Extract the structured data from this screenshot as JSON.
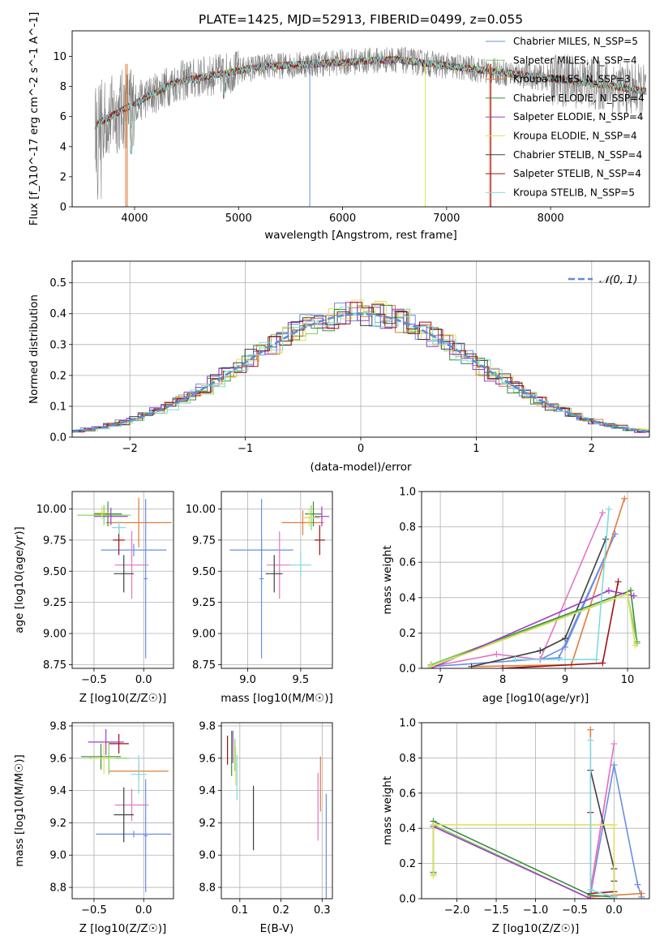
{
  "chart_data": [
    {
      "id": "spectrum",
      "type": "line",
      "title": "PLATE=1425, MJD=52913, FIBERID=0499, z=0.055",
      "xlabel": "wavelength [Angstrom, rest frame]",
      "ylabel": "Flux [f_λ10^-17 erg cm^-2 s^-1 A^-1]",
      "xlim": [
        3400,
        8950
      ],
      "ylim": [
        0,
        11.7
      ],
      "xticks": [
        4000,
        5000,
        6000,
        7000,
        8000
      ],
      "yticks": [
        0,
        2,
        4,
        6,
        8,
        10
      ],
      "grid": false,
      "legend_position": "top-right",
      "observed_series_color": "#808080",
      "legend": [
        {
          "name": "Chabrier MILES, N_SSP=5",
          "color": "#6a8ee6"
        },
        {
          "name": "Salpeter MILES, N_SSP=4",
          "color": "#7fcf5a"
        },
        {
          "name": "Kroupa MILES, N_SSP=3",
          "color": "#e07b39"
        },
        {
          "name": "Chabrier ELODIE, N_SSP=4",
          "color": "#3d8b3d"
        },
        {
          "name": "Salpeter ELODIE, N_SSP=4",
          "color": "#a03cc8"
        },
        {
          "name": "Kroupa ELODIE, N_SSP=4",
          "color": "#e0e060"
        },
        {
          "name": "Chabrier STELIB, N_SSP=4",
          "color": "#404040"
        },
        {
          "name": "Salpeter STELIB, N_SSP=4",
          "color": "#a01010"
        },
        {
          "name": "Kroupa STELIB, N_SSP=5",
          "color": "#7fdbe0"
        }
      ]
    },
    {
      "id": "residuals",
      "type": "line",
      "title": "",
      "xlabel": "(data-model)/error",
      "ylabel": "Normed distribution",
      "xlim": [
        -2.5,
        2.5
      ],
      "ylim": [
        0,
        0.57
      ],
      "xticks": [
        -2,
        -1,
        0,
        1,
        2
      ],
      "yticks": [
        0.0,
        0.1,
        0.2,
        0.3,
        0.4,
        0.5
      ],
      "grid": true,
      "legend_position": "top-right",
      "reference_curve": {
        "name": "𝒩(0, 1)",
        "color": "#5b8ed6",
        "style": "dashed",
        "mean": 0,
        "sigma": 1
      },
      "histogram_bin_width": 0.1,
      "histogram_bin_start": -2.5,
      "histogram_series_count": 9
    },
    {
      "id": "age_vs_Z",
      "type": "scatter",
      "title": "",
      "xlabel": "Z [log10(Z/Z☉)]",
      "ylabel": "age  [log10(age/yr)]",
      "xlim": [
        -0.72,
        0.3
      ],
      "ylim": [
        8.72,
        10.14
      ],
      "xticks": [
        -0.5,
        0.0
      ],
      "yticks": [
        8.75,
        9.0,
        9.25,
        9.5,
        9.75,
        10.0
      ],
      "grid": true,
      "points": [
        {
          "x": -0.1,
          "y": 9.67,
          "xerr": 0.33,
          "yerr": 0.05,
          "color": "#6a8ee6"
        },
        {
          "x": 0.02,
          "y": 9.44,
          "xerr": 0.02,
          "yerr": 0.64,
          "color": "#6a8ee6"
        },
        {
          "x": -0.05,
          "y": 9.89,
          "xerr": 0.33,
          "yerr": 0.2,
          "color": "#e07b39"
        },
        {
          "x": -0.12,
          "y": 9.55,
          "xerr": 0.17,
          "yerr": 0.27,
          "color": "#e377c2"
        },
        {
          "x": -0.2,
          "y": 9.48,
          "xerr": 0.1,
          "yerr": 0.15,
          "color": "#404040"
        },
        {
          "x": -0.25,
          "y": 9.75,
          "xerr": 0.06,
          "yerr": 0.12,
          "color": "#a01010"
        },
        {
          "x": -0.36,
          "y": 9.96,
          "xerr": 0.14,
          "yerr": 0.1,
          "color": "#3d8b3d"
        },
        {
          "x": -0.4,
          "y": 9.95,
          "xerr": 0.27,
          "yerr": 0.08,
          "color": "#7fcf5a"
        },
        {
          "x": -0.33,
          "y": 9.94,
          "xerr": 0.17,
          "yerr": 0.07,
          "color": "#a03cc8"
        },
        {
          "x": -0.42,
          "y": 9.97,
          "xerr": 0.08,
          "yerr": 0.05,
          "color": "#e0e060"
        },
        {
          "x": -0.25,
          "y": 9.85,
          "xerr": 0.07,
          "yerr": 0.05,
          "color": "#7fdbe0"
        }
      ]
    },
    {
      "id": "age_vs_mass",
      "type": "scatter",
      "title": "",
      "xlabel": "mass [log10(M/M☉)]",
      "ylabel": "",
      "xlim": [
        8.75,
        9.8
      ],
      "ylim": [
        8.72,
        10.14
      ],
      "xticks": [
        9.0,
        9.5
      ],
      "yticks": [
        8.75,
        9.0,
        9.25,
        9.5,
        9.75,
        10.0
      ],
      "grid": true,
      "points": [
        {
          "x": 9.13,
          "y": 9.67,
          "xerr": 0.3,
          "yerr": 0.08,
          "color": "#6a8ee6"
        },
        {
          "x": 9.13,
          "y": 9.44,
          "xerr": 0.02,
          "yerr": 0.64,
          "color": "#6a8ee6"
        },
        {
          "x": 9.52,
          "y": 9.89,
          "xerr": 0.2,
          "yerr": 0.1,
          "color": "#e07b39"
        },
        {
          "x": 9.3,
          "y": 9.55,
          "xerr": 0.12,
          "yerr": 0.27,
          "color": "#e377c2"
        },
        {
          "x": 9.25,
          "y": 9.48,
          "xerr": 0.08,
          "yerr": 0.15,
          "color": "#404040"
        },
        {
          "x": 9.68,
          "y": 9.75,
          "xerr": 0.05,
          "yerr": 0.12,
          "color": "#a01010"
        },
        {
          "x": 9.62,
          "y": 9.96,
          "xerr": 0.08,
          "yerr": 0.1,
          "color": "#3d8b3d"
        },
        {
          "x": 9.6,
          "y": 9.93,
          "xerr": 0.08,
          "yerr": 0.1,
          "color": "#7fcf5a"
        },
        {
          "x": 9.7,
          "y": 9.94,
          "xerr": 0.07,
          "yerr": 0.08,
          "color": "#a03cc8"
        },
        {
          "x": 9.58,
          "y": 9.93,
          "xerr": 0.06,
          "yerr": 0.07,
          "color": "#e0e060"
        },
        {
          "x": 9.5,
          "y": 9.55,
          "xerr": 0.1,
          "yerr": 0.1,
          "color": "#7fdbe0"
        }
      ]
    },
    {
      "id": "mass_weight_vs_age",
      "type": "line",
      "title": "",
      "xlabel": "age  [log10(age/yr)]",
      "ylabel": "mass weight",
      "xlim": [
        6.7,
        10.35
      ],
      "ylim": [
        0,
        1.0
      ],
      "xticks": [
        7,
        8,
        9,
        10
      ],
      "yticks": [
        0.0,
        0.2,
        0.4,
        0.6,
        0.8,
        1.0
      ],
      "grid": true,
      "series": [
        {
          "color": "#6a8ee6",
          "x": [
            6.85,
            8.9,
            9.8,
            9.0,
            8.6
          ],
          "y": [
            0.01,
            0.06,
            0.76,
            0.12,
            0.05
          ]
        },
        {
          "color": "#e07b39",
          "x": [
            7.5,
            9.1,
            9.95
          ],
          "y": [
            0.01,
            0.02,
            0.96
          ]
        },
        {
          "color": "#e377c2",
          "x": [
            6.85,
            7.9,
            8.6,
            9.6
          ],
          "y": [
            0.01,
            0.08,
            0.05,
            0.88
          ]
        },
        {
          "color": "#404040",
          "x": [
            7.5,
            8.6,
            9.0,
            9.65
          ],
          "y": [
            0.01,
            0.1,
            0.17,
            0.73
          ]
        },
        {
          "color": "#a01010",
          "x": [
            8.0,
            9.6,
            9.85
          ],
          "y": [
            0.0,
            0.03,
            0.49
          ]
        },
        {
          "color": "#3d8b3d",
          "x": [
            6.85,
            10.05,
            10.15
          ],
          "y": [
            0.02,
            0.44,
            0.15
          ]
        },
        {
          "color": "#7fcf5a",
          "x": [
            6.85,
            10.0,
            10.15
          ],
          "y": [
            0.02,
            0.42,
            0.14
          ]
        },
        {
          "color": "#a03cc8",
          "x": [
            6.85,
            9.7,
            10.1
          ],
          "y": [
            0.0,
            0.44,
            0.41
          ]
        },
        {
          "color": "#e0e060",
          "x": [
            6.85,
            10.0,
            10.12
          ],
          "y": [
            0.01,
            0.42,
            0.13
          ]
        },
        {
          "color": "#7fdbe0",
          "x": [
            8.2,
            9.5,
            9.7
          ],
          "y": [
            0.05,
            0.05,
            0.9
          ]
        }
      ]
    },
    {
      "id": "mass_vs_Z",
      "type": "scatter",
      "title": "",
      "xlabel": "Z [log10(Z/Z☉)]",
      "ylabel": "mass [log10(M/M☉)]",
      "xlim": [
        -0.72,
        0.3
      ],
      "ylim": [
        8.73,
        9.82
      ],
      "xticks": [
        -0.5,
        0.0
      ],
      "yticks": [
        8.8,
        9.0,
        9.2,
        9.4,
        9.6,
        9.8
      ],
      "grid": true,
      "points": [
        {
          "x": -0.1,
          "y": 9.13,
          "xerr": 0.38,
          "yerr": 0.02,
          "color": "#6a8ee6"
        },
        {
          "x": 0.02,
          "y": 9.12,
          "xerr": 0.02,
          "yerr": 0.35,
          "color": "#6a8ee6"
        },
        {
          "x": -0.05,
          "y": 9.52,
          "xerr": 0.3,
          "yerr": 0.06,
          "color": "#e07b39"
        },
        {
          "x": -0.12,
          "y": 9.31,
          "xerr": 0.17,
          "yerr": 0.1,
          "color": "#e377c2"
        },
        {
          "x": -0.2,
          "y": 9.25,
          "xerr": 0.1,
          "yerr": 0.17,
          "color": "#404040"
        },
        {
          "x": -0.25,
          "y": 9.69,
          "xerr": 0.1,
          "yerr": 0.06,
          "color": "#a01010"
        },
        {
          "x": -0.43,
          "y": 9.61,
          "xerr": 0.2,
          "yerr": 0.08,
          "color": "#3d8b3d"
        },
        {
          "x": -0.35,
          "y": 9.6,
          "xerr": 0.2,
          "yerr": 0.1,
          "color": "#7fcf5a"
        },
        {
          "x": -0.38,
          "y": 9.7,
          "xerr": 0.18,
          "yerr": 0.08,
          "color": "#a03cc8"
        },
        {
          "x": -0.4,
          "y": 9.6,
          "xerr": 0.12,
          "yerr": 0.1,
          "color": "#e0e060"
        },
        {
          "x": -0.05,
          "y": 9.5,
          "xerr": 0.08,
          "yerr": 0.12,
          "color": "#7fdbe0"
        }
      ]
    },
    {
      "id": "mass_vs_ebv",
      "type": "scatter",
      "title": "",
      "xlabel": "E(B-V)",
      "ylabel": "",
      "xlim": [
        0.055,
        0.325
      ],
      "ylim": [
        8.73,
        9.82
      ],
      "xticks": [
        0.1,
        0.2,
        0.3
      ],
      "yticks": [
        8.8,
        9.0,
        9.2,
        9.4,
        9.6,
        9.8
      ],
      "grid": true,
      "points": [
        {
          "x": 0.31,
          "y": 9.05,
          "yerr": 0.33,
          "color": "#6a8ee6"
        },
        {
          "x": 0.296,
          "y": 9.44,
          "yerr": 0.17,
          "color": "#e07b39"
        },
        {
          "x": 0.29,
          "y": 9.3,
          "yerr": 0.21,
          "color": "#e377c2"
        },
        {
          "x": 0.133,
          "y": 9.23,
          "yerr": 0.2,
          "color": "#404040"
        },
        {
          "x": 0.07,
          "y": 9.65,
          "yerr": 0.09,
          "color": "#a01010"
        },
        {
          "x": 0.08,
          "y": 9.63,
          "yerr": 0.14,
          "color": "#3d8b3d"
        },
        {
          "x": 0.088,
          "y": 9.62,
          "yerr": 0.1,
          "color": "#7fcf5a"
        },
        {
          "x": 0.083,
          "y": 9.67,
          "yerr": 0.1,
          "color": "#a03cc8"
        },
        {
          "x": 0.09,
          "y": 9.55,
          "yerr": 0.12,
          "color": "#e0e060"
        },
        {
          "x": 0.093,
          "y": 9.48,
          "yerr": 0.14,
          "color": "#7fdbe0"
        }
      ]
    },
    {
      "id": "mass_weight_vs_Z",
      "type": "line",
      "title": "",
      "xlabel": "Z [log10(Z/Z☉)]",
      "ylabel": "mass weight",
      "xlim": [
        -2.45,
        0.45
      ],
      "ylim": [
        0,
        1.0
      ],
      "xticks": [
        -2.0,
        -1.5,
        -1.0,
        -0.5,
        0.0
      ],
      "yticks": [
        0.0,
        0.2,
        0.4,
        0.6,
        0.8,
        1.0
      ],
      "grid": true,
      "series": [
        {
          "color": "#6a8ee6",
          "x": [
            -0.3,
            0.0,
            0.3,
            0.35
          ],
          "y": [
            0.02,
            0.76,
            0.08,
            0.01
          ]
        },
        {
          "color": "#e07b39",
          "x": [
            -0.3,
            -0.3,
            0.0,
            0.35
          ],
          "y": [
            0.96,
            0.01,
            0.02,
            0.03
          ]
        },
        {
          "color": "#e377c2",
          "x": [
            -0.3,
            0.0,
            -0.3
          ],
          "y": [
            0.05,
            0.88,
            0.03
          ]
        },
        {
          "color": "#404040",
          "x": [
            -0.3,
            0.0,
            0.0
          ],
          "y": [
            0.73,
            0.17,
            0.1
          ]
        },
        {
          "color": "#a01010",
          "x": [
            -0.3,
            -0.3,
            0.0
          ],
          "y": [
            0.49,
            0.03,
            0.04
          ]
        },
        {
          "color": "#3d8b3d",
          "x": [
            -2.3,
            -2.3,
            -0.3,
            0.0
          ],
          "y": [
            0.15,
            0.44,
            0.02,
            0.01
          ]
        },
        {
          "color": "#7fcf5a",
          "x": [
            -2.3,
            -2.3,
            -0.3,
            0.0
          ],
          "y": [
            0.14,
            0.42,
            0.0,
            0.0
          ]
        },
        {
          "color": "#a03cc8",
          "x": [
            -2.3,
            -0.3,
            0.0
          ],
          "y": [
            0.41,
            0.0,
            0.0
          ]
        },
        {
          "color": "#e0e060",
          "x": [
            -2.3,
            -2.3,
            0.0,
            0.0
          ],
          "y": [
            0.13,
            0.42,
            0.42,
            0.01
          ]
        },
        {
          "color": "#7fdbe0",
          "x": [
            -0.3,
            -0.3,
            0.0
          ],
          "y": [
            0.9,
            0.05,
            0.01
          ]
        }
      ]
    }
  ]
}
